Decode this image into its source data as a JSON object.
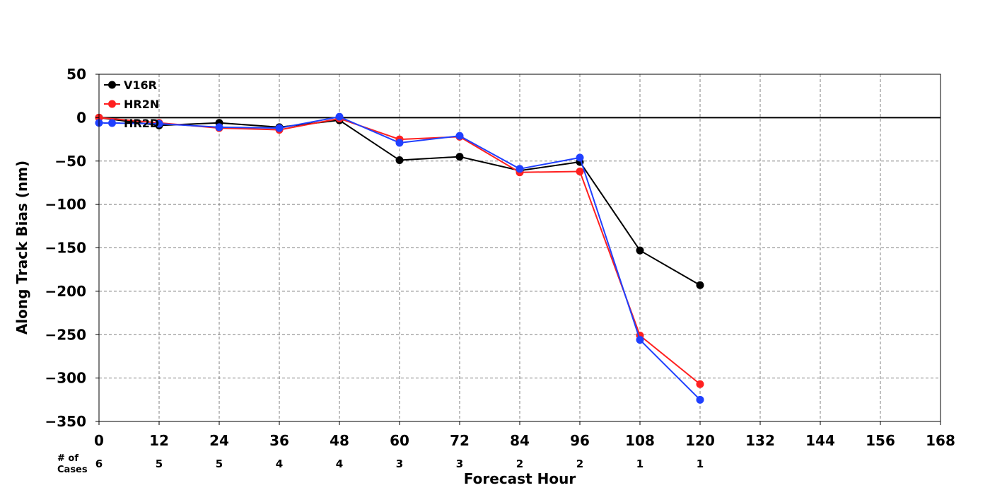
{
  "chart_data": {
    "type": "line",
    "title": "",
    "xlabel": "Forecast Hour",
    "ylabel": "Along Track Bias (nm)",
    "xlim": [
      0,
      168
    ],
    "ylim": [
      -350,
      50
    ],
    "x_ticks": [
      0,
      12,
      24,
      36,
      48,
      60,
      72,
      84,
      96,
      108,
      120,
      132,
      144,
      156,
      168
    ],
    "y_ticks": [
      50,
      0,
      -50,
      -100,
      -150,
      -200,
      -250,
      -300,
      -350
    ],
    "x_tick_labels": [
      "0",
      "12",
      "24",
      "36",
      "48",
      "60",
      "72",
      "84",
      "96",
      "108",
      "120",
      "132",
      "144",
      "156",
      "168"
    ],
    "y_tick_labels": [
      "50",
      "0",
      "−50",
      "−100",
      "−150",
      "−200",
      "−250",
      "−300",
      "−350"
    ],
    "grid": true,
    "legend_position": "top-left",
    "zero_line": true,
    "cases_label": [
      "# of",
      "Cases"
    ],
    "cases": [
      {
        "x": 0,
        "label": "6"
      },
      {
        "x": 12,
        "label": "5"
      },
      {
        "x": 24,
        "label": "5"
      },
      {
        "x": 36,
        "label": "4"
      },
      {
        "x": 48,
        "label": "4"
      },
      {
        "x": 60,
        "label": "3"
      },
      {
        "x": 72,
        "label": "3"
      },
      {
        "x": 84,
        "label": "2"
      },
      {
        "x": 96,
        "label": "2"
      },
      {
        "x": 108,
        "label": "1"
      },
      {
        "x": 120,
        "label": "1"
      }
    ],
    "x": [
      0,
      12,
      24,
      36,
      48,
      60,
      72,
      84,
      96,
      108,
      120
    ],
    "series": [
      {
        "name": "V16R",
        "color": "#000000",
        "values": [
          0,
          -9,
          -6,
          -11,
          -3,
          -49,
          -45,
          -61,
          -51,
          -153,
          -193
        ]
      },
      {
        "name": "HR2N",
        "color": "#ff2020",
        "values": [
          0,
          -6,
          -12,
          -14,
          -1,
          -25,
          -22,
          -63,
          -62,
          -251,
          -307
        ]
      },
      {
        "name": "HR2D",
        "color": "#2040ff",
        "values": [
          -6,
          -7,
          -11,
          -12,
          1,
          -29,
          -21,
          -59,
          -46,
          -256,
          -325
        ]
      }
    ]
  }
}
